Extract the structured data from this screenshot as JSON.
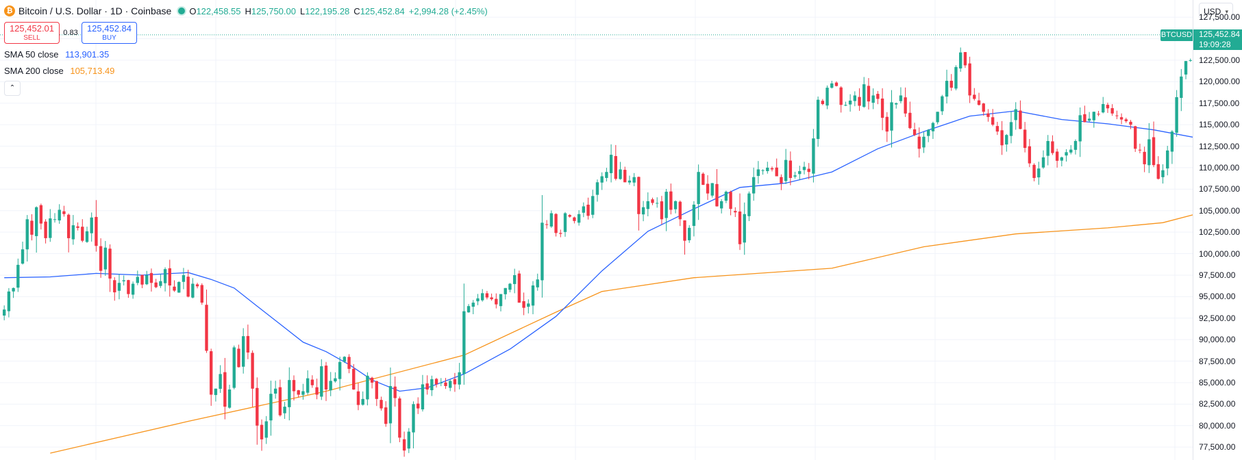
{
  "symbol": {
    "icon": "bitcoin-icon",
    "icon_glyph": "₿",
    "title": "Bitcoin / U.S. Dollar · 1D · Coinbase",
    "open_label": "O",
    "open": "122,458.55",
    "high_label": "H",
    "high": "125,750.00",
    "low_label": "L",
    "low": "122,195.28",
    "close_label": "C",
    "close": "125,452.84",
    "change": "+2,994.28 (+2.45%)"
  },
  "trade": {
    "sell_price": "125,452.01",
    "sell_label": "SELL",
    "spread": "0.83",
    "buy_price": "125,452.84",
    "buy_label": "BUY"
  },
  "indicators": [
    {
      "name": "SMA 50 close",
      "value": "113,901.35"
    },
    {
      "name": "SMA 200 close",
      "value": "105,713.49"
    }
  ],
  "collapse_glyph": "⌃",
  "price_axis": {
    "currency": "USD",
    "ticks": [
      "127,500.00",
      "125,000.00",
      "122,500.00",
      "120,000.00",
      "117,500.00",
      "115,000.00",
      "112,500.00",
      "110,000.00",
      "107,500.00",
      "105,000.00",
      "102,500.00",
      "100,000.00",
      "97,500.00",
      "95,000.00",
      "92,500.00",
      "90,000.00",
      "87,500.00",
      "85,000.00",
      "82,500.00",
      "80,000.00",
      "77,500.00"
    ],
    "last_price": "125,452.84",
    "countdown": "19:09:28",
    "symbol_tag": "BTCUSD"
  },
  "colors": {
    "up": "#22ab94",
    "down": "#f23645",
    "sma50": "#2962ff",
    "sma200": "#f7931a",
    "grid": "#f0f3fa"
  },
  "chart_data": {
    "type": "candlestick",
    "ylim": [
      76000,
      129500
    ],
    "closes": [
      93500,
      95600,
      96000,
      98700,
      100500,
      104000,
      102200,
      105400,
      103500,
      101800,
      104100,
      104000,
      105100,
      104600,
      101800,
      103300,
      103000,
      101500,
      102600,
      104200,
      100900,
      98000,
      100700,
      97100,
      95500,
      96600,
      96900,
      95300,
      96500,
      97300,
      96400,
      97500,
      96600,
      96100,
      96800,
      98200,
      96300,
      95700,
      96700,
      97500,
      95000,
      96500,
      96200,
      94300,
      88700,
      83600,
      84300,
      86000,
      82200,
      84200,
      89100,
      86800,
      90400,
      88500,
      84300,
      80000,
      78400,
      80500,
      83700,
      84300,
      81200,
      82200,
      85300,
      84000,
      83600,
      84000,
      85500,
      84700,
      83600,
      86900,
      84200,
      85200,
      85500,
      87400,
      88000,
      86600,
      84200,
      82400,
      83100,
      85800,
      85000,
      83100,
      82000,
      80200,
      84600,
      83200,
      78600,
      77100,
      79300,
      82500,
      82000,
      84800,
      84200,
      85400,
      84800,
      85000,
      84600,
      85200,
      84800,
      86200,
      93300,
      93900,
      94300,
      94800,
      95400,
      94900,
      94700,
      94100,
      95300,
      96000,
      96500,
      97500,
      94300,
      93700,
      94200,
      96300,
      97000,
      103600,
      103400,
      104700,
      102400,
      102300,
      104700,
      104300,
      103800,
      104600,
      105500,
      104400,
      106700,
      108300,
      109000,
      109500,
      111500,
      108700,
      109800,
      108300,
      108500,
      108900,
      104600,
      105400,
      106100,
      105900,
      105900,
      104000,
      107200,
      105100,
      106100,
      104000,
      101500,
      103000,
      105700,
      109500,
      108000,
      107000,
      108200,
      105500,
      106100,
      107200,
      105200,
      104800,
      101100,
      104600,
      107000,
      108900,
      109800,
      109700,
      110000,
      109800,
      109000,
      108200,
      110900,
      108800,
      109100,
      109600,
      110100,
      109500,
      113400,
      117900,
      117400,
      119300,
      119800,
      119500,
      117300,
      117300,
      117800,
      118400,
      117200,
      119700,
      117700,
      118400,
      118000,
      115800,
      114200,
      117600,
      117500,
      118400,
      116300,
      114600,
      113800,
      112200,
      113600,
      114400,
      115200,
      116500,
      118300,
      120100,
      119300,
      121700,
      123400,
      121900,
      118400,
      118000,
      117300,
      116500,
      115900,
      115000,
      114200,
      112600,
      113800,
      115300,
      116800,
      114500,
      112300,
      110500,
      108800,
      109900,
      111200,
      113100,
      111700,
      110800,
      111200,
      111800,
      112100,
      113100,
      116100,
      115300,
      115700,
      116500,
      116200,
      117400,
      116900,
      116300,
      116000,
      115600,
      115400,
      115000,
      112200,
      112000,
      110400,
      113300,
      110300,
      108700,
      109700,
      112000,
      114200,
      118200,
      120600,
      122400,
      122500,
      125500
    ],
    "sma50_series": [
      {
        "x": 0,
        "v": 97200
      },
      {
        "x": 10,
        "v": 97300
      },
      {
        "x": 20,
        "v": 97700
      },
      {
        "x": 30,
        "v": 97500
      },
      {
        "x": 40,
        "v": 97800
      },
      {
        "x": 45,
        "v": 97000
      },
      {
        "x": 50,
        "v": 96000
      },
      {
        "x": 55,
        "v": 93900
      },
      {
        "x": 60,
        "v": 91800
      },
      {
        "x": 65,
        "v": 89700
      },
      {
        "x": 70,
        "v": 88600
      },
      {
        "x": 75,
        "v": 87100
      },
      {
        "x": 80,
        "v": 85300
      },
      {
        "x": 86,
        "v": 84000
      },
      {
        "x": 92,
        "v": 84400
      },
      {
        "x": 100,
        "v": 86000
      },
      {
        "x": 110,
        "v": 88900
      },
      {
        "x": 120,
        "v": 92700
      },
      {
        "x": 130,
        "v": 98000
      },
      {
        "x": 140,
        "v": 102600
      },
      {
        "x": 150,
        "v": 105200
      },
      {
        "x": 160,
        "v": 107700
      },
      {
        "x": 170,
        "v": 108200
      },
      {
        "x": 180,
        "v": 109500
      },
      {
        "x": 190,
        "v": 112200
      },
      {
        "x": 200,
        "v": 114200
      },
      {
        "x": 210,
        "v": 116000
      },
      {
        "x": 220,
        "v": 116600
      },
      {
        "x": 230,
        "v": 115600
      },
      {
        "x": 240,
        "v": 115100
      },
      {
        "x": 250,
        "v": 114400
      },
      {
        "x": 260,
        "v": 113400
      },
      {
        "x": 267,
        "v": 113900
      }
    ],
    "sma200_series": [
      {
        "x": 10,
        "v": 76800
      },
      {
        "x": 40,
        "v": 80500
      },
      {
        "x": 70,
        "v": 84000
      },
      {
        "x": 100,
        "v": 88200
      },
      {
        "x": 120,
        "v": 93200
      },
      {
        "x": 130,
        "v": 95600
      },
      {
        "x": 150,
        "v": 97200
      },
      {
        "x": 180,
        "v": 98300
      },
      {
        "x": 200,
        "v": 100800
      },
      {
        "x": 220,
        "v": 102300
      },
      {
        "x": 240,
        "v": 103000
      },
      {
        "x": 252,
        "v": 103600
      },
      {
        "x": 267,
        "v": 105700
      }
    ]
  }
}
